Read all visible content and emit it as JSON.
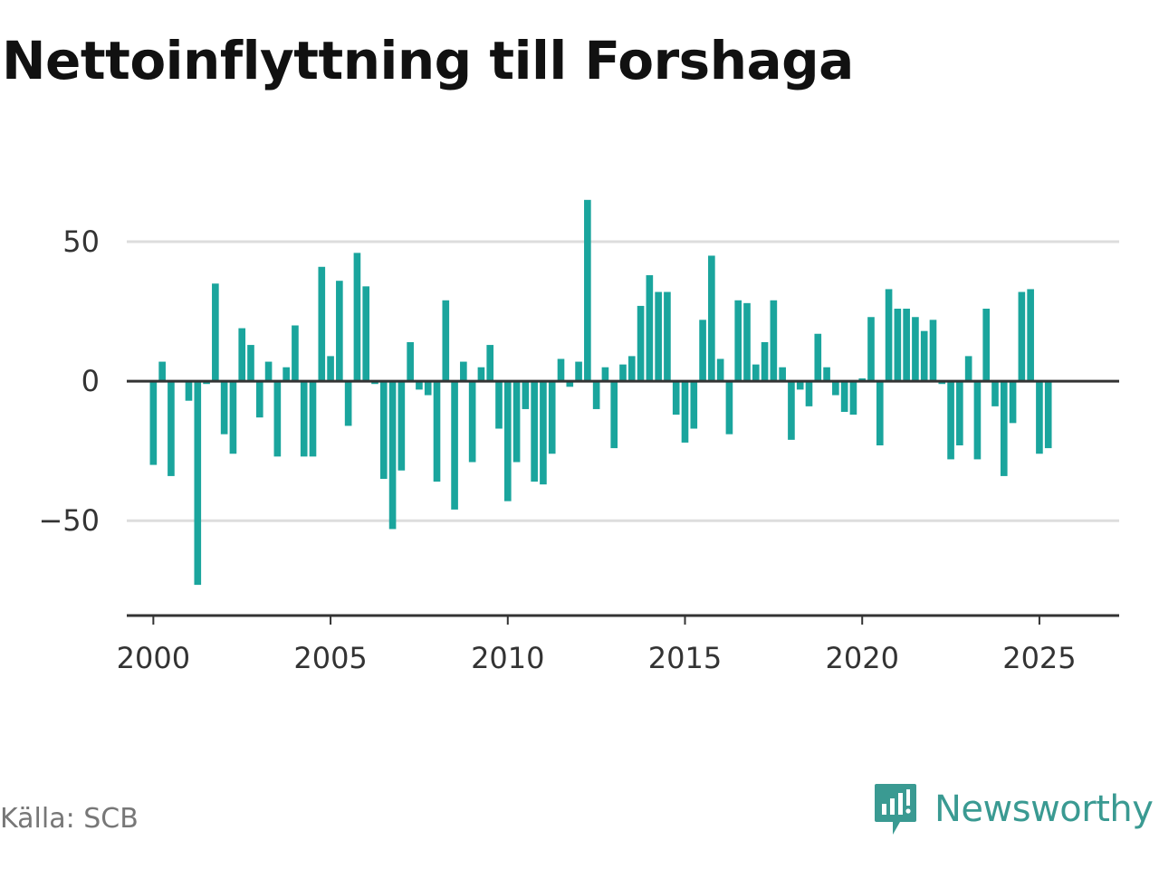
{
  "title": "Nettoinflyttning till Forshaga",
  "source": "Källa: SCB",
  "brand": {
    "name": "Newsworthy",
    "icon": "newsworthy-logo-icon",
    "color": "#3a9a92"
  },
  "colors": {
    "bar": "#1aa59d",
    "zero_line": "#333333",
    "grid": "#dddddd",
    "axis": "#333333"
  },
  "chart_data": {
    "type": "bar",
    "title": "Nettoinflyttning till Forshaga",
    "xlabel": "",
    "ylabel": "",
    "x_start": 2000,
    "x_step_per_bar": 0.25,
    "xlim": [
      1999.25,
      2027.25
    ],
    "ylim": [
      -84,
      75
    ],
    "grid": true,
    "yticks": [
      50,
      0,
      -50
    ],
    "ytick_labels": [
      "50",
      "0",
      "−50"
    ],
    "xticks": [
      2000,
      2005,
      2010,
      2015,
      2020,
      2025
    ],
    "xtick_labels": [
      "2000",
      "2005",
      "2010",
      "2015",
      "2020",
      "2025"
    ],
    "values": [
      -30,
      7,
      -34,
      0,
      -7,
      -73,
      -1,
      35,
      -19,
      -26,
      19,
      13,
      -13,
      7,
      -27,
      5,
      20,
      -27,
      -27,
      41,
      9,
      36,
      -16,
      46,
      34,
      -1,
      -35,
      -53,
      -32,
      14,
      -3,
      -5,
      -36,
      29,
      -46,
      7,
      -29,
      5,
      13,
      -17,
      -43,
      -29,
      -10,
      -36,
      -37,
      -26,
      8,
      -2,
      7,
      65,
      -10,
      5,
      -24,
      6,
      9,
      27,
      38,
      32,
      32,
      -12,
      -22,
      -17,
      22,
      45,
      8,
      -19,
      29,
      28,
      6,
      14,
      29,
      5,
      -21,
      -3,
      -9,
      17,
      5,
      -5,
      -11,
      -12,
      1,
      23,
      -23,
      33,
      26,
      26,
      23,
      18,
      22,
      -1,
      -28,
      -23,
      9,
      -28,
      26,
      -9,
      -34,
      -15,
      32,
      33,
      -26,
      -24
    ]
  }
}
